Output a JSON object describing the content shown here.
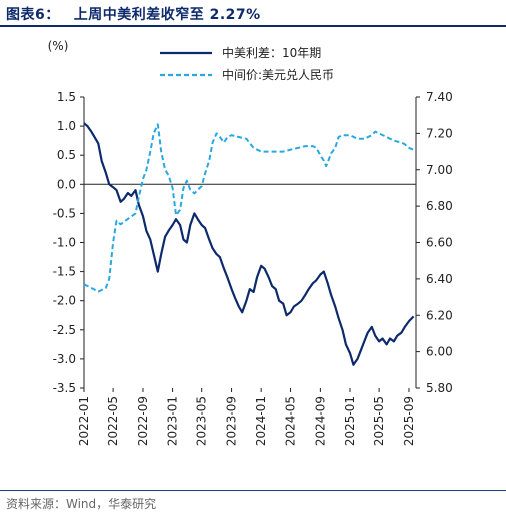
{
  "header": {
    "figure_label": "图表6：",
    "title": "上周中美利差收窄至 2.27%"
  },
  "source": "资料来源：Wind，华泰研究",
  "chart_data": {
    "type": "line",
    "left_unit": "(%)",
    "x_tick_labels": [
      "2022-01",
      "2022-05",
      "2022-09",
      "2023-01",
      "2023-05",
      "2023-09",
      "2024-01",
      "2024-05",
      "2024-09",
      "2025-01",
      "2025-05",
      "2025-09"
    ],
    "x_range": [
      "2022-01-01",
      "2025-09-30"
    ],
    "left_axis": {
      "min": -3.5,
      "max": 1.5,
      "ticks": [
        "1.5",
        "1.0",
        "0.5",
        "0.0",
        "-0.5",
        "-1.0",
        "-1.5",
        "-2.0",
        "-2.5",
        "-3.0",
        "-3.5"
      ]
    },
    "right_axis": {
      "min": 5.8,
      "max": 7.4,
      "ticks": [
        "7.40",
        "7.20",
        "7.00",
        "6.80",
        "6.60",
        "6.40",
        "6.20",
        "6.00",
        "5.80"
      ]
    },
    "legend_position": "top",
    "series": [
      {
        "name": "中美利差：10年期",
        "axis": "left",
        "color": "#0d2a6b",
        "style": "solid",
        "points": [
          [
            "2022-01-01",
            1.05
          ],
          [
            "2022-01-15",
            1.0
          ],
          [
            "2022-02-01",
            0.9
          ],
          [
            "2022-02-15",
            0.8
          ],
          [
            "2022-03-01",
            0.7
          ],
          [
            "2022-03-15",
            0.4
          ],
          [
            "2022-04-01",
            0.2
          ],
          [
            "2022-04-15",
            0.0
          ],
          [
            "2022-05-01",
            -0.05
          ],
          [
            "2022-05-15",
            -0.1
          ],
          [
            "2022-06-01",
            -0.3
          ],
          [
            "2022-06-15",
            -0.25
          ],
          [
            "2022-07-01",
            -0.15
          ],
          [
            "2022-07-15",
            -0.2
          ],
          [
            "2022-08-01",
            -0.1
          ],
          [
            "2022-08-15",
            -0.35
          ],
          [
            "2022-09-01",
            -0.55
          ],
          [
            "2022-09-15",
            -0.8
          ],
          [
            "2022-10-01",
            -0.95
          ],
          [
            "2022-10-15",
            -1.2
          ],
          [
            "2022-11-01",
            -1.5
          ],
          [
            "2022-11-15",
            -1.2
          ],
          [
            "2022-12-01",
            -0.9
          ],
          [
            "2022-12-15",
            -0.8
          ],
          [
            "2023-01-01",
            -0.7
          ],
          [
            "2023-01-15",
            -0.6
          ],
          [
            "2023-02-01",
            -0.7
          ],
          [
            "2023-02-15",
            -0.95
          ],
          [
            "2023-03-01",
            -1.0
          ],
          [
            "2023-03-15",
            -0.7
          ],
          [
            "2023-04-01",
            -0.5
          ],
          [
            "2023-04-15",
            -0.6
          ],
          [
            "2023-05-01",
            -0.7
          ],
          [
            "2023-05-15",
            -0.75
          ],
          [
            "2023-06-01",
            -0.95
          ],
          [
            "2023-06-15",
            -1.1
          ],
          [
            "2023-07-01",
            -1.2
          ],
          [
            "2023-07-15",
            -1.25
          ],
          [
            "2023-08-01",
            -1.45
          ],
          [
            "2023-08-15",
            -1.6
          ],
          [
            "2023-09-01",
            -1.8
          ],
          [
            "2023-09-15",
            -1.95
          ],
          [
            "2023-10-01",
            -2.1
          ],
          [
            "2023-10-15",
            -2.2
          ],
          [
            "2023-11-01",
            -2.0
          ],
          [
            "2023-11-15",
            -1.8
          ],
          [
            "2023-12-01",
            -1.85
          ],
          [
            "2023-12-15",
            -1.6
          ],
          [
            "2024-01-01",
            -1.4
          ],
          [
            "2024-01-15",
            -1.45
          ],
          [
            "2024-02-01",
            -1.6
          ],
          [
            "2024-02-15",
            -1.75
          ],
          [
            "2024-03-01",
            -1.8
          ],
          [
            "2024-03-15",
            -2.0
          ],
          [
            "2024-04-01",
            -2.05
          ],
          [
            "2024-04-15",
            -2.25
          ],
          [
            "2024-05-01",
            -2.2
          ],
          [
            "2024-05-15",
            -2.1
          ],
          [
            "2024-06-01",
            -2.05
          ],
          [
            "2024-06-15",
            -2.0
          ],
          [
            "2024-07-01",
            -1.9
          ],
          [
            "2024-07-15",
            -1.8
          ],
          [
            "2024-08-01",
            -1.7
          ],
          [
            "2024-08-15",
            -1.65
          ],
          [
            "2024-09-01",
            -1.55
          ],
          [
            "2024-09-15",
            -1.5
          ],
          [
            "2024-10-01",
            -1.7
          ],
          [
            "2024-10-15",
            -1.9
          ],
          [
            "2024-11-01",
            -2.1
          ],
          [
            "2024-11-15",
            -2.3
          ],
          [
            "2024-12-01",
            -2.5
          ],
          [
            "2024-12-15",
            -2.75
          ],
          [
            "2025-01-01",
            -2.9
          ],
          [
            "2025-01-15",
            -3.1
          ],
          [
            "2025-02-01",
            -3.0
          ],
          [
            "2025-02-15",
            -2.85
          ],
          [
            "2025-03-01",
            -2.7
          ],
          [
            "2025-03-15",
            -2.55
          ],
          [
            "2025-04-01",
            -2.45
          ],
          [
            "2025-04-15",
            -2.6
          ],
          [
            "2025-05-01",
            -2.7
          ],
          [
            "2025-05-15",
            -2.65
          ],
          [
            "2025-06-01",
            -2.75
          ],
          [
            "2025-06-15",
            -2.65
          ],
          [
            "2025-07-01",
            -2.7
          ],
          [
            "2025-07-15",
            -2.6
          ],
          [
            "2025-08-01",
            -2.55
          ],
          [
            "2025-08-15",
            -2.45
          ],
          [
            "2025-09-01",
            -2.35
          ],
          [
            "2025-09-20",
            -2.27
          ]
        ]
      },
      {
        "name": "中间价:美元兑人民币",
        "axis": "right",
        "color": "#29a8e0",
        "style": "dashed",
        "points": [
          [
            "2022-01-01",
            6.37
          ],
          [
            "2022-02-01",
            6.35
          ],
          [
            "2022-03-01",
            6.33
          ],
          [
            "2022-04-01",
            6.35
          ],
          [
            "2022-04-15",
            6.4
          ],
          [
            "2022-05-01",
            6.6
          ],
          [
            "2022-05-15",
            6.72
          ],
          [
            "2022-06-01",
            6.7
          ],
          [
            "2022-07-01",
            6.73
          ],
          [
            "2022-08-01",
            6.76
          ],
          [
            "2022-08-15",
            6.85
          ],
          [
            "2022-09-01",
            6.95
          ],
          [
            "2022-09-15",
            7.0
          ],
          [
            "2022-10-01",
            7.1
          ],
          [
            "2022-10-15",
            7.2
          ],
          [
            "2022-11-01",
            7.25
          ],
          [
            "2022-11-15",
            7.1
          ],
          [
            "2022-12-01",
            7.0
          ],
          [
            "2022-12-15",
            6.97
          ],
          [
            "2023-01-01",
            6.9
          ],
          [
            "2023-01-15",
            6.75
          ],
          [
            "2023-02-01",
            6.78
          ],
          [
            "2023-02-15",
            6.9
          ],
          [
            "2023-03-01",
            6.94
          ],
          [
            "2023-03-15",
            6.89
          ],
          [
            "2023-04-01",
            6.87
          ],
          [
            "2023-04-15",
            6.89
          ],
          [
            "2023-05-01",
            6.91
          ],
          [
            "2023-05-15",
            6.98
          ],
          [
            "2023-06-01",
            7.05
          ],
          [
            "2023-06-15",
            7.15
          ],
          [
            "2023-07-01",
            7.2
          ],
          [
            "2023-07-15",
            7.18
          ],
          [
            "2023-08-01",
            7.15
          ],
          [
            "2023-08-15",
            7.18
          ],
          [
            "2023-09-01",
            7.19
          ],
          [
            "2023-10-01",
            7.18
          ],
          [
            "2023-11-01",
            7.17
          ],
          [
            "2023-12-01",
            7.12
          ],
          [
            "2024-01-01",
            7.1
          ],
          [
            "2024-02-01",
            7.1
          ],
          [
            "2024-03-01",
            7.1
          ],
          [
            "2024-04-01",
            7.1
          ],
          [
            "2024-05-01",
            7.11
          ],
          [
            "2024-06-01",
            7.12
          ],
          [
            "2024-07-01",
            7.13
          ],
          [
            "2024-08-01",
            7.13
          ],
          [
            "2024-08-15",
            7.12
          ],
          [
            "2024-09-01",
            7.08
          ],
          [
            "2024-09-15",
            7.05
          ],
          [
            "2024-09-25",
            7.02
          ],
          [
            "2024-10-01",
            7.04
          ],
          [
            "2024-10-15",
            7.09
          ],
          [
            "2024-11-01",
            7.12
          ],
          [
            "2024-11-15",
            7.18
          ],
          [
            "2024-12-01",
            7.19
          ],
          [
            "2025-01-01",
            7.19
          ],
          [
            "2025-02-01",
            7.17
          ],
          [
            "2025-03-01",
            7.17
          ],
          [
            "2025-04-01",
            7.19
          ],
          [
            "2025-04-15",
            7.21
          ],
          [
            "2025-05-01",
            7.2
          ],
          [
            "2025-06-01",
            7.18
          ],
          [
            "2025-07-01",
            7.16
          ],
          [
            "2025-08-01",
            7.15
          ],
          [
            "2025-08-15",
            7.14
          ],
          [
            "2025-09-01",
            7.12
          ],
          [
            "2025-09-20",
            7.11
          ]
        ]
      }
    ]
  }
}
